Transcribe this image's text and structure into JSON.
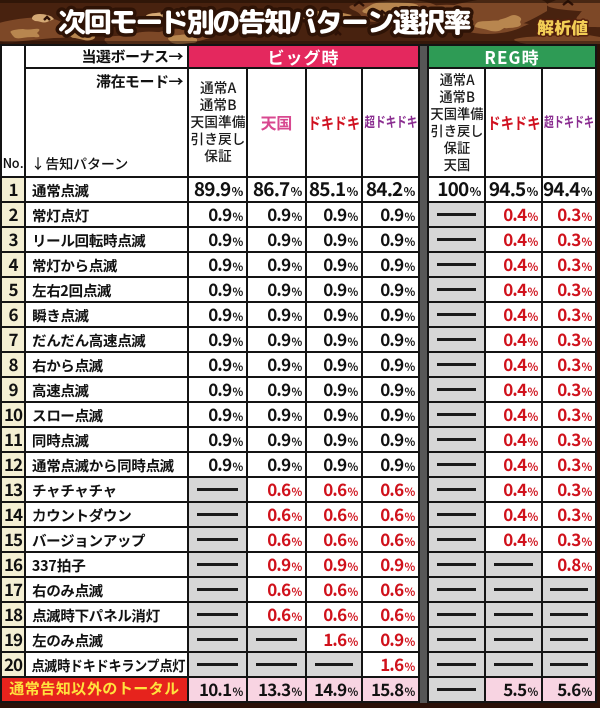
{
  "title": "次回モード別の告知パターン選択率",
  "badge": "解析値",
  "header": {
    "bonus_label": "当選ボーナス→",
    "mode_label": "滞在モード→",
    "no_label": "No.",
    "pattern_label": "↓告知パターン",
    "big_group": "ビッグ時",
    "reg_group": "REG時",
    "columns": [
      {
        "label": "通常A\n通常B\n天国準備\n引き戻し\n保証",
        "color": "#1b1b1b"
      },
      {
        "label": "天国",
        "color": "#d84890"
      },
      {
        "label": "ドキドキ",
        "color": "#d01120"
      },
      {
        "label": "超ドキドキ",
        "color": "#8a2d90"
      },
      {
        "label": "通常A\n通常B\n天国準備\n引き戻し\n保証\n天国",
        "color": "#1b1b1b"
      },
      {
        "label": "ドキドキ",
        "color": "#d01120"
      },
      {
        "label": "超ドキドキ",
        "color": "#8a2d90"
      }
    ]
  },
  "colors": {
    "big_band": "#e4285e",
    "reg_band": "#2e9b55",
    "value_red": "#d0111b",
    "value_black": "#111111",
    "total_label_bg": "#e6231d",
    "total_label_text": "#ffe23e",
    "total_value_bg": "#f8d4e2",
    "no_col_bg": "#f4efd3",
    "dash_cell_bg": "#d6d6d6",
    "grid_line": "#141414",
    "band_base_brown": "#48220f",
    "separator_gray": "#565656",
    "frame_brown": "#2b1007"
  },
  "chart_data": {
    "type": "table",
    "title": "次回モード別の告知パターン選択率",
    "unit": "%",
    "dash": "—",
    "col_groups": [
      "ビッグ時",
      "ビッグ時",
      "ビッグ時",
      "ビッグ時",
      "REG時",
      "REG時",
      "REG時"
    ],
    "col_modes": [
      "通常A/通常B/天国準備/引き戻し/保証",
      "天国",
      "ドキドキ",
      "超ドキドキ",
      "通常A/通常B/天国準備/引き戻し/保証/天国",
      "ドキドキ",
      "超ドキドキ"
    ],
    "rows": [
      {
        "no": "1",
        "pattern": "通常点滅",
        "values": [
          89.9,
          86.7,
          85.1,
          84.2,
          100,
          94.5,
          94.4
        ],
        "red": [
          0,
          0,
          0,
          0,
          0,
          0,
          0
        ]
      },
      {
        "no": "2",
        "pattern": "常灯点灯",
        "values": [
          0.9,
          0.9,
          0.9,
          0.9,
          null,
          0.4,
          0.3
        ],
        "red": [
          0,
          0,
          0,
          0,
          0,
          1,
          1
        ]
      },
      {
        "no": "3",
        "pattern": "リール回転時点滅",
        "values": [
          0.9,
          0.9,
          0.9,
          0.9,
          null,
          0.4,
          0.3
        ],
        "red": [
          0,
          0,
          0,
          0,
          0,
          1,
          1
        ]
      },
      {
        "no": "4",
        "pattern": "常灯から点滅",
        "values": [
          0.9,
          0.9,
          0.9,
          0.9,
          null,
          0.4,
          0.3
        ],
        "red": [
          0,
          0,
          0,
          0,
          0,
          1,
          1
        ]
      },
      {
        "no": "5",
        "pattern": "左右2回点滅",
        "values": [
          0.9,
          0.9,
          0.9,
          0.9,
          null,
          0.4,
          0.3
        ],
        "red": [
          0,
          0,
          0,
          0,
          0,
          1,
          1
        ]
      },
      {
        "no": "6",
        "pattern": "瞬き点滅",
        "values": [
          0.9,
          0.9,
          0.9,
          0.9,
          null,
          0.4,
          0.3
        ],
        "red": [
          0,
          0,
          0,
          0,
          0,
          1,
          1
        ]
      },
      {
        "no": "7",
        "pattern": "だんだん高速点滅",
        "values": [
          0.9,
          0.9,
          0.9,
          0.9,
          null,
          0.4,
          0.3
        ],
        "red": [
          0,
          0,
          0,
          0,
          0,
          1,
          1
        ]
      },
      {
        "no": "8",
        "pattern": "右から点滅",
        "values": [
          0.9,
          0.9,
          0.9,
          0.9,
          null,
          0.4,
          0.3
        ],
        "red": [
          0,
          0,
          0,
          0,
          0,
          1,
          1
        ]
      },
      {
        "no": "9",
        "pattern": "高速点滅",
        "values": [
          0.9,
          0.9,
          0.9,
          0.9,
          null,
          0.4,
          0.3
        ],
        "red": [
          0,
          0,
          0,
          0,
          0,
          1,
          1
        ]
      },
      {
        "no": "10",
        "pattern": "スロー点滅",
        "values": [
          0.9,
          0.9,
          0.9,
          0.9,
          null,
          0.4,
          0.3
        ],
        "red": [
          0,
          0,
          0,
          0,
          0,
          1,
          1
        ]
      },
      {
        "no": "11",
        "pattern": "同時点滅",
        "values": [
          0.9,
          0.9,
          0.9,
          0.9,
          null,
          0.4,
          0.3
        ],
        "red": [
          0,
          0,
          0,
          0,
          0,
          1,
          1
        ]
      },
      {
        "no": "12",
        "pattern": "通常点滅から同時点滅",
        "values": [
          0.9,
          0.9,
          0.9,
          0.9,
          null,
          0.4,
          0.3
        ],
        "red": [
          0,
          0,
          0,
          0,
          0,
          1,
          1
        ]
      },
      {
        "no": "13",
        "pattern": "チャチャチャ",
        "values": [
          null,
          0.6,
          0.6,
          0.6,
          null,
          0.4,
          0.3
        ],
        "red": [
          0,
          1,
          1,
          1,
          0,
          1,
          1
        ]
      },
      {
        "no": "14",
        "pattern": "カウントダウン",
        "values": [
          null,
          0.6,
          0.6,
          0.6,
          null,
          0.4,
          0.3
        ],
        "red": [
          0,
          1,
          1,
          1,
          0,
          1,
          1
        ]
      },
      {
        "no": "15",
        "pattern": "バージョンアップ",
        "values": [
          null,
          0.6,
          0.6,
          0.6,
          null,
          0.4,
          0.3
        ],
        "red": [
          0,
          1,
          1,
          1,
          0,
          1,
          1
        ]
      },
      {
        "no": "16",
        "pattern": "337拍子",
        "values": [
          null,
          0.9,
          0.9,
          0.9,
          null,
          null,
          0.8
        ],
        "red": [
          0,
          1,
          1,
          1,
          0,
          0,
          1
        ]
      },
      {
        "no": "17",
        "pattern": "右のみ点滅",
        "values": [
          null,
          0.6,
          0.6,
          0.6,
          null,
          null,
          null
        ],
        "red": [
          0,
          1,
          1,
          1,
          0,
          0,
          0
        ]
      },
      {
        "no": "18",
        "pattern": "点滅時下パネル消灯",
        "values": [
          null,
          0.6,
          0.6,
          0.6,
          null,
          null,
          null
        ],
        "red": [
          0,
          1,
          1,
          1,
          0,
          0,
          0
        ]
      },
      {
        "no": "19",
        "pattern": "左のみ点滅",
        "values": [
          null,
          null,
          1.6,
          0.9,
          null,
          null,
          null
        ],
        "red": [
          0,
          0,
          1,
          1,
          0,
          0,
          0
        ]
      },
      {
        "no": "20",
        "pattern": "点滅時ドキドキランプ点灯",
        "values": [
          null,
          null,
          null,
          1.6,
          null,
          null,
          null
        ],
        "red": [
          0,
          0,
          0,
          1,
          0,
          0,
          0
        ]
      }
    ],
    "total": {
      "label": "通常告知以外のトータル",
      "values": [
        10.1,
        13.3,
        14.9,
        15.8,
        null,
        5.5,
        5.6
      ],
      "red": [
        0,
        0,
        0,
        0,
        0,
        0,
        0
      ]
    }
  }
}
